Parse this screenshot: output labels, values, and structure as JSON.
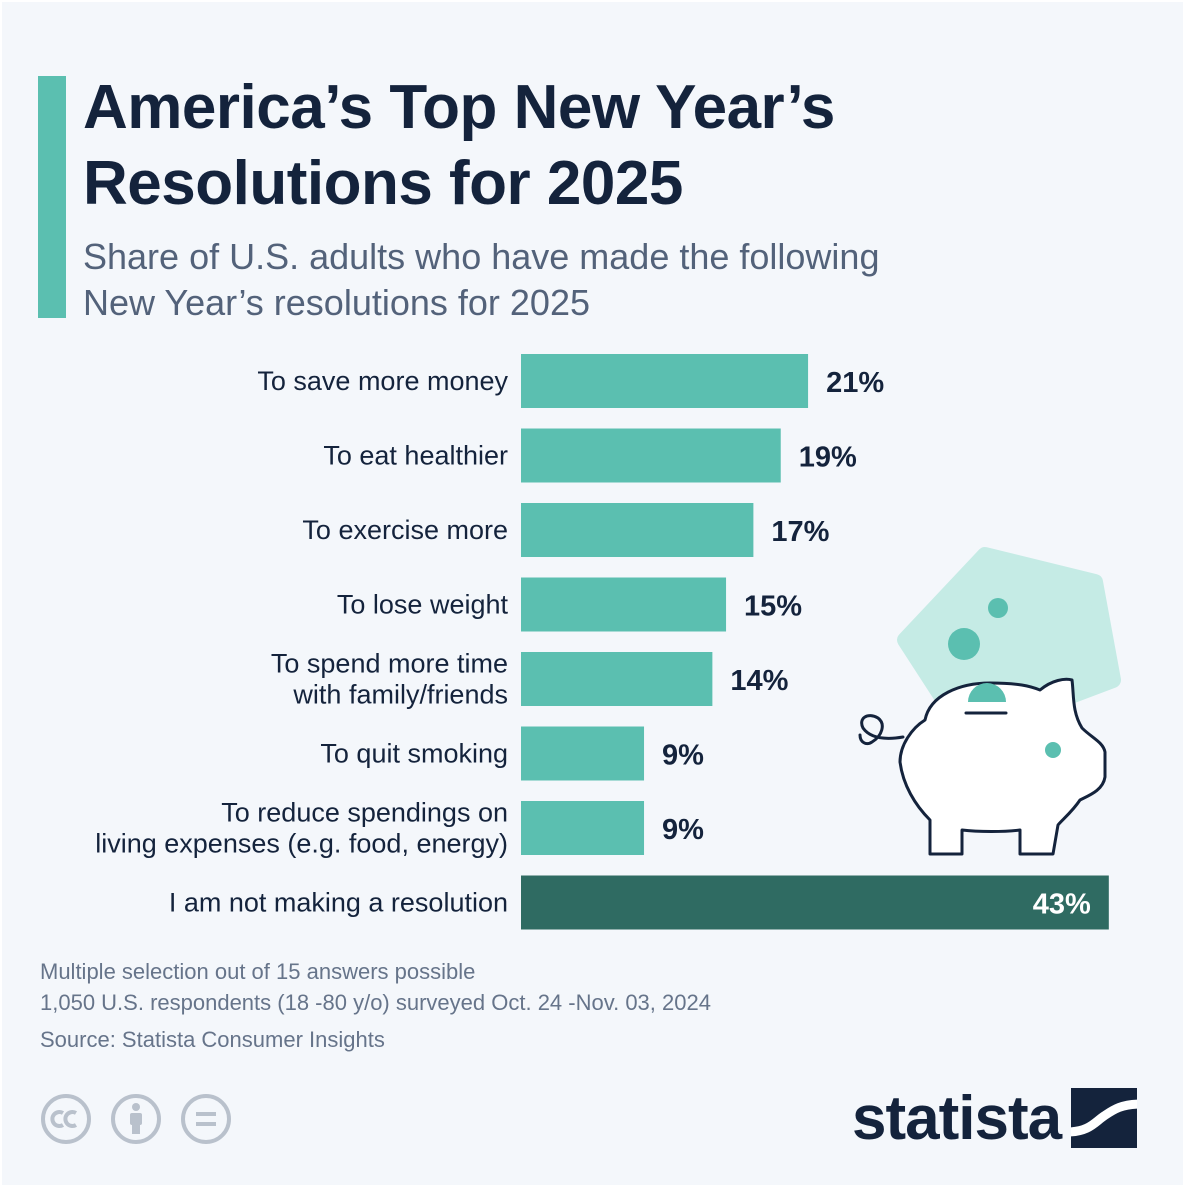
{
  "header": {
    "title": "America’s Top New Year’s\nResolutions for 2025",
    "subtitle": "Share of U.S. adults who have made the following\nNew Year’s resolutions for 2025"
  },
  "chart_data": {
    "type": "bar",
    "orientation": "horizontal",
    "title": "America’s Top New Year’s Resolutions for 2025",
    "subtitle": "Share of U.S. adults who have made the following New Year’s resolutions for 2025",
    "unit": "%",
    "categories": [
      [
        "To save more money"
      ],
      [
        "To eat healthier"
      ],
      [
        "To exercise more"
      ],
      [
        "To lose weight"
      ],
      [
        "To spend more time",
        "with family/friends"
      ],
      [
        "To quit smoking"
      ],
      [
        "To reduce spendings on",
        "living expenses (e.g. food, energy)"
      ],
      [
        "I am not making a resolution"
      ]
    ],
    "values": [
      21,
      19,
      17,
      15,
      14,
      9,
      9,
      43
    ],
    "value_labels": [
      "21%",
      "19%",
      "17%",
      "15%",
      "14%",
      "9%",
      "9%",
      "43%"
    ],
    "bar_colors": [
      "#5bbfb0",
      "#5bbfb0",
      "#5bbfb0",
      "#5bbfb0",
      "#5bbfb0",
      "#5bbfb0",
      "#5bbfb0",
      "#2f6b62"
    ],
    "grid": false,
    "legend": "none"
  },
  "footer": {
    "note1": "Multiple selection out of 15 answers possible",
    "note2": "1,050 U.S. respondents (18 -80 y/o) surveyed Oct. 24 -Nov. 03, 2024",
    "source": "Source: Statista Consumer Insights",
    "license_icons": [
      "cc-icon",
      "by-person-icon",
      "nd-equals-icon"
    ],
    "brand": "statista"
  },
  "illustration": {
    "icon": "piggy-bank-icon",
    "blob_color": "#c5ebe5",
    "coin_color": "#5bbfb0",
    "outline_color": "#14233c"
  }
}
